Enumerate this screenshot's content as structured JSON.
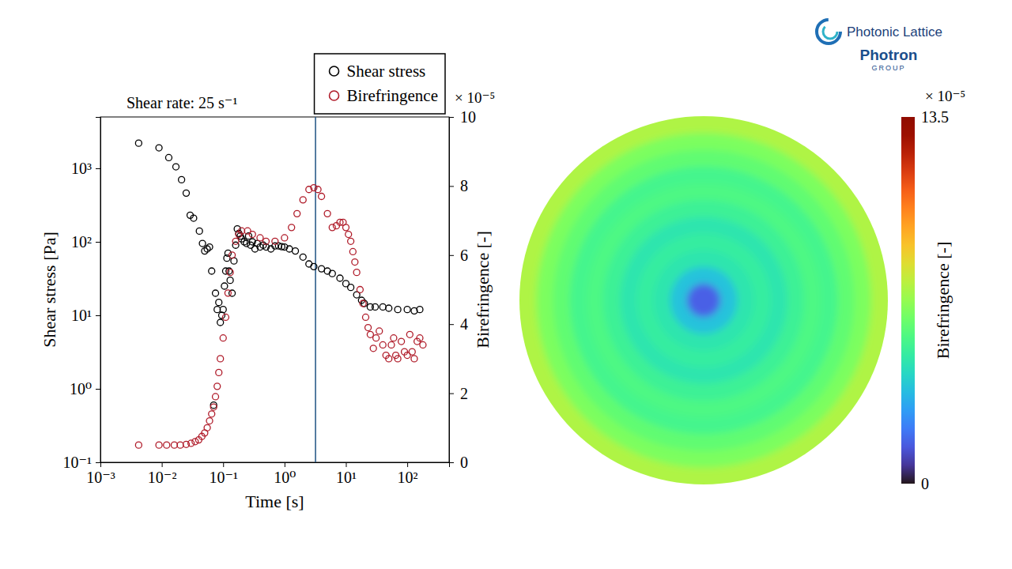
{
  "logo": {
    "line1": "Photonic Lattice",
    "line2": "Photron",
    "line3": "GROUP"
  },
  "chart_data": [
    {
      "type": "scatter",
      "title": "Shear rate: 25 s⁻¹",
      "x_label": "Time [s]",
      "y_label": "Shear stress [Pa]",
      "y2_label": "Birefringence [-]",
      "y2_multiplier": "× 10⁻⁵",
      "log": true,
      "xlim": [
        0.001,
        480
      ],
      "xticks": [
        {
          "value": 0.001,
          "label": "10⁻³"
        },
        {
          "value": 0.01,
          "label": "10⁻²"
        },
        {
          "value": 0.1,
          "label": "10⁻¹"
        },
        {
          "value": 1,
          "label": "10⁰"
        },
        {
          "value": 10,
          "label": "10¹"
        },
        {
          "value": 100,
          "label": "10²"
        }
      ],
      "ylim": [
        0.1,
        5000
      ],
      "yticks": [
        {
          "value": 0.1,
          "label": "10⁻¹"
        },
        {
          "value": 1,
          "label": "10⁰"
        },
        {
          "value": 10,
          "label": "10¹"
        },
        {
          "value": 100,
          "label": "10²"
        },
        {
          "value": 1000,
          "label": "10³"
        }
      ],
      "y2lim": [
        0,
        10
      ],
      "y2ticks": [
        0,
        2,
        4,
        6,
        8,
        10
      ],
      "legend": "top-right",
      "marker": "circle",
      "vline": 3.2,
      "series": [
        {
          "name": "Shear stress",
          "color": "#000000",
          "axis": "y",
          "x": [
            0.0042,
            0.009,
            0.013,
            0.017,
            0.021,
            0.025,
            0.029,
            0.033,
            0.041,
            0.046,
            0.05,
            0.055,
            0.06,
            0.065,
            0.07,
            0.075,
            0.08,
            0.085,
            0.09,
            0.095,
            0.1,
            0.105,
            0.11,
            0.115,
            0.12,
            0.125,
            0.13,
            0.14,
            0.15,
            0.16,
            0.17,
            0.18,
            0.19,
            0.2,
            0.22,
            0.24,
            0.26,
            0.28,
            0.3,
            0.33,
            0.36,
            0.4,
            0.45,
            0.5,
            0.6,
            0.7,
            0.8,
            0.9,
            1,
            1.2,
            1.5,
            2,
            2.5,
            3,
            4,
            5,
            6,
            8,
            10,
            12,
            15,
            18,
            20,
            25,
            30,
            40,
            50,
            70,
            100,
            130,
            160
          ],
          "values": [
            2200,
            1900,
            1400,
            1050,
            700,
            460,
            230,
            210,
            140,
            95,
            75,
            80,
            85,
            40,
            0.6,
            20,
            12,
            15,
            8,
            10,
            12,
            25,
            40,
            60,
            70,
            40,
            30,
            20,
            55,
            90,
            150,
            130,
            120,
            110,
            100,
            95,
            120,
            90,
            100,
            80,
            95,
            85,
            90,
            85,
            80,
            88,
            88,
            86,
            85,
            80,
            75,
            62,
            50,
            46,
            43,
            40,
            37,
            32,
            27,
            24,
            19,
            16,
            14.5,
            13,
            13,
            13,
            12.5,
            12,
            12,
            11.5,
            12
          ]
        },
        {
          "name": "Birefringence",
          "color": "#b01c2a",
          "axis": "y2",
          "x": [
            0.0042,
            0.009,
            0.012,
            0.016,
            0.02,
            0.025,
            0.03,
            0.035,
            0.04,
            0.045,
            0.05,
            0.055,
            0.06,
            0.065,
            0.07,
            0.075,
            0.08,
            0.085,
            0.09,
            0.1,
            0.11,
            0.12,
            0.13,
            0.14,
            0.16,
            0.18,
            0.2,
            0.25,
            0.3,
            0.4,
            0.5,
            0.7,
            1,
            1.3,
            1.6,
            2,
            2.5,
            3,
            3.5,
            4,
            5,
            6,
            7,
            8,
            9,
            10,
            11,
            12,
            13,
            14,
            15,
            17,
            19,
            21,
            23,
            25,
            28,
            31,
            35,
            40,
            45,
            50,
            55,
            60,
            65,
            70,
            80,
            90,
            100,
            110,
            120,
            130,
            145,
            160,
            180
          ],
          "values": [
            0.5,
            0.5,
            0.5,
            0.5,
            0.5,
            0.52,
            0.55,
            0.6,
            0.65,
            0.75,
            0.85,
            1.0,
            1.2,
            1.4,
            1.6,
            1.9,
            2.2,
            2.6,
            3.0,
            3.6,
            4.2,
            4.9,
            5.5,
            6.0,
            6.4,
            6.6,
            6.7,
            6.7,
            6.6,
            6.5,
            6.4,
            6.4,
            6.5,
            6.8,
            7.2,
            7.6,
            7.9,
            7.95,
            7.9,
            7.7,
            7.2,
            6.8,
            6.85,
            6.95,
            6.95,
            6.8,
            6.6,
            6.4,
            6.1,
            5.8,
            5.5,
            5.0,
            4.6,
            4.2,
            3.9,
            3.7,
            3.3,
            3.6,
            3.8,
            3.4,
            3.1,
            3.0,
            3.4,
            3.6,
            3.1,
            3.0,
            3.5,
            3.2,
            3.1,
            3.7,
            3.2,
            3.0,
            3.5,
            3.6,
            3.4
          ]
        }
      ]
    },
    {
      "type": "heatmap",
      "colorbar_label": "Birefringence [-]",
      "colorbar_multiplier": "× 10⁻⁵",
      "colorbar_range": [
        0,
        13.5
      ],
      "colorbar_ticks": [
        0,
        13.5
      ],
      "radial_profile": [
        1.5,
        3.5,
        4.5,
        4.8,
        4.5,
        5.0,
        5.4,
        5.2,
        5.8,
        6.3,
        7.2
      ]
    }
  ]
}
